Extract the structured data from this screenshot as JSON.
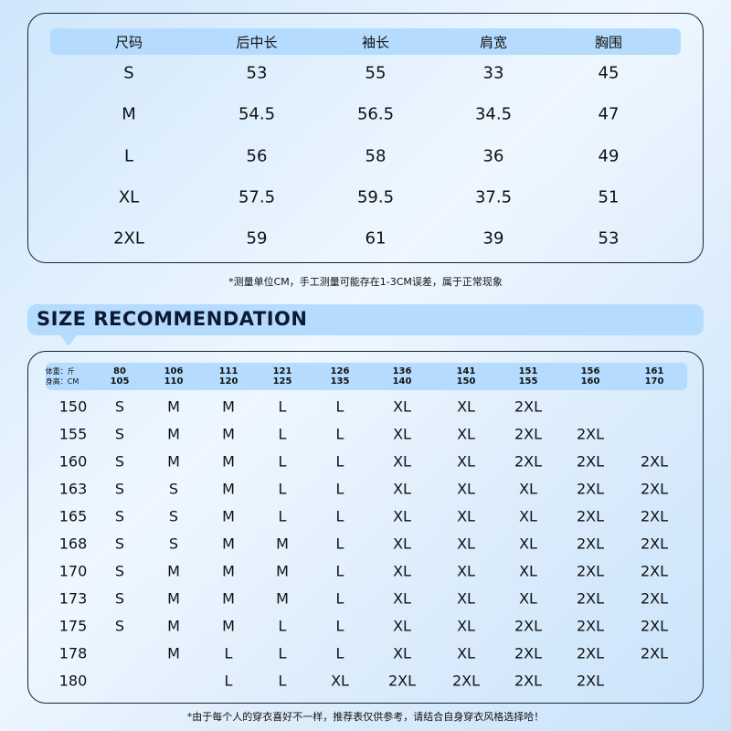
{
  "size_table": {
    "headers": [
      "尺码",
      "后中长",
      "袖长",
      "肩宽",
      "胸围"
    ],
    "rows": [
      [
        "S",
        "53",
        "55",
        "33",
        "45"
      ],
      [
        "M",
        "54.5",
        "56.5",
        "34.5",
        "47"
      ],
      [
        "L",
        "56",
        "58",
        "36",
        "49"
      ],
      [
        "XL",
        "57.5",
        "59.5",
        "37.5",
        "51"
      ],
      [
        "2XL",
        "59",
        "61",
        "39",
        "53"
      ]
    ]
  },
  "measure_note": "*测量单位CM，手工测量可能存在1-3CM误差，属于正常现象",
  "recommendation": {
    "title": "SIZE RECOMMENDATION",
    "weight_label": "体重：斤",
    "height_label": "身高：CM",
    "columns": [
      [
        "80",
        "105"
      ],
      [
        "106",
        "110"
      ],
      [
        "111",
        "120"
      ],
      [
        "121",
        "125"
      ],
      [
        "126",
        "135"
      ],
      [
        "136",
        "140"
      ],
      [
        "141",
        "150"
      ],
      [
        "151",
        "155"
      ],
      [
        "156",
        "160"
      ],
      [
        "161",
        "170"
      ]
    ],
    "rows": [
      {
        "label": "150",
        "sizes": [
          "S",
          "M",
          "M",
          "L",
          "L",
          "XL",
          "XL",
          "2XL",
          "",
          ""
        ]
      },
      {
        "label": "155",
        "sizes": [
          "S",
          "M",
          "M",
          "L",
          "L",
          "XL",
          "XL",
          "2XL",
          "2XL",
          ""
        ]
      },
      {
        "label": "160",
        "sizes": [
          "S",
          "M",
          "M",
          "L",
          "L",
          "XL",
          "XL",
          "2XL",
          "2XL",
          "2XL"
        ]
      },
      {
        "label": "163",
        "sizes": [
          "S",
          "S",
          "M",
          "L",
          "L",
          "XL",
          "XL",
          "XL",
          "2XL",
          "2XL"
        ]
      },
      {
        "label": "165",
        "sizes": [
          "S",
          "S",
          "M",
          "L",
          "L",
          "XL",
          "XL",
          "XL",
          "2XL",
          "2XL"
        ]
      },
      {
        "label": "168",
        "sizes": [
          "S",
          "S",
          "M",
          "M",
          "L",
          "XL",
          "XL",
          "XL",
          "2XL",
          "2XL"
        ]
      },
      {
        "label": "170",
        "sizes": [
          "S",
          "M",
          "M",
          "M",
          "L",
          "XL",
          "XL",
          "XL",
          "2XL",
          "2XL"
        ]
      },
      {
        "label": "173",
        "sizes": [
          "S",
          "M",
          "M",
          "M",
          "L",
          "XL",
          "XL",
          "XL",
          "2XL",
          "2XL"
        ]
      },
      {
        "label": "175",
        "sizes": [
          "S",
          "M",
          "M",
          "L",
          "L",
          "XL",
          "XL",
          "2XL",
          "2XL",
          "2XL"
        ]
      },
      {
        "label": "178",
        "sizes": [
          "",
          "M",
          "L",
          "L",
          "L",
          "XL",
          "XL",
          "2XL",
          "2XL",
          "2XL"
        ]
      },
      {
        "label": "180",
        "sizes": [
          "",
          "",
          "L",
          "L",
          "XL",
          "2XL",
          "2XL",
          "2XL",
          "2XL",
          ""
        ]
      }
    ]
  },
  "recommend_note": "*由于每个人的穿衣喜好不一样，推荐表仅供参考，请结合自身穿衣风格选择哈！"
}
